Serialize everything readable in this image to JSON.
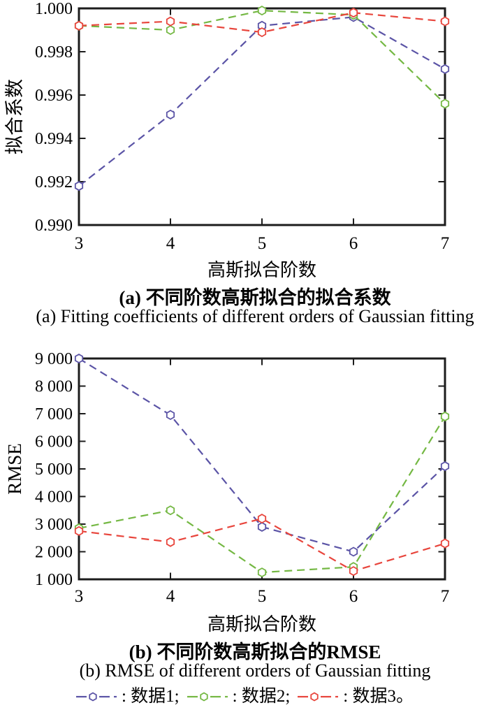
{
  "colors": {
    "background": "#ffffff",
    "axis": "#1c1c1c",
    "text": "#000000"
  },
  "legend": {
    "items": [
      {
        "name": "数据1",
        "text": ": 数据1;",
        "color": "#5b54a6",
        "marker": "hexagon",
        "line_style": "dashed"
      },
      {
        "name": "数据2",
        "text": ": 数据2;",
        "color": "#74b843",
        "marker": "hexagon",
        "line_style": "dashed"
      },
      {
        "name": "数据3",
        "text": ": 数据3。",
        "color": "#e8453c",
        "marker": "hexagon",
        "line_style": "dashed"
      }
    ]
  },
  "chart_data": [
    {
      "type": "line",
      "title": "",
      "xlabel": "高斯拟合阶数",
      "ylabel": "拟合系数",
      "x": [
        3,
        4,
        5,
        6,
        7
      ],
      "xticks": [
        3,
        4,
        5,
        6,
        7
      ],
      "xtick_labels": [
        "3",
        "4",
        "5",
        "6",
        "7"
      ],
      "xlim": [
        3,
        7
      ],
      "ylim": [
        0.99,
        1.0
      ],
      "yticks": [
        0.99,
        0.992,
        0.994,
        0.996,
        0.998,
        1.0
      ],
      "ytick_labels": [
        "0.990",
        "0.992",
        "0.994",
        "0.996",
        "0.998",
        "1.000"
      ],
      "grid": false,
      "legend_position": "none",
      "series": [
        {
          "name": "数据1",
          "color": "#5b54a6",
          "values": [
            0.9918,
            0.9951,
            0.9992,
            0.9996,
            0.9972
          ]
        },
        {
          "name": "数据2",
          "color": "#74b843",
          "values": [
            0.9992,
            0.999,
            0.9999,
            0.9997,
            0.9956
          ]
        },
        {
          "name": "数据3",
          "color": "#e8453c",
          "values": [
            0.9992,
            0.9994,
            0.9989,
            0.9998,
            0.9994
          ]
        }
      ],
      "caption_zh": "(a) 不同阶数高斯拟合的拟合系数",
      "caption_en": "(a) Fitting coefficients of different orders of Gaussian fitting"
    },
    {
      "type": "line",
      "title": "",
      "xlabel": "高斯拟合阶数",
      "ylabel": "RMSE",
      "x": [
        3,
        4,
        5,
        6,
        7
      ],
      "xticks": [
        3,
        4,
        5,
        6,
        7
      ],
      "xtick_labels": [
        "3",
        "4",
        "5",
        "6",
        "7"
      ],
      "xlim": [
        3,
        7
      ],
      "ylim": [
        1000,
        9000
      ],
      "yticks": [
        1000,
        2000,
        3000,
        4000,
        5000,
        6000,
        7000,
        8000,
        9000
      ],
      "ytick_labels": [
        "1 000",
        "2 000",
        "3 000",
        "4 000",
        "5 000",
        "6 000",
        "7 000",
        "8 000",
        "9 000"
      ],
      "grid": false,
      "legend_position": "below",
      "series": [
        {
          "name": "数据1",
          "color": "#5b54a6",
          "values": [
            9000,
            6950,
            2900,
            2000,
            5100
          ]
        },
        {
          "name": "数据2",
          "color": "#74b843",
          "values": [
            2850,
            3500,
            1250,
            1450,
            6900
          ]
        },
        {
          "name": "数据3",
          "color": "#e8453c",
          "values": [
            2750,
            2350,
            3200,
            1300,
            2300
          ]
        }
      ],
      "caption_zh": "(b) 不同阶数高斯拟合的RMSE",
      "caption_en": "(b) RMSE of different orders of Gaussian fitting"
    }
  ]
}
